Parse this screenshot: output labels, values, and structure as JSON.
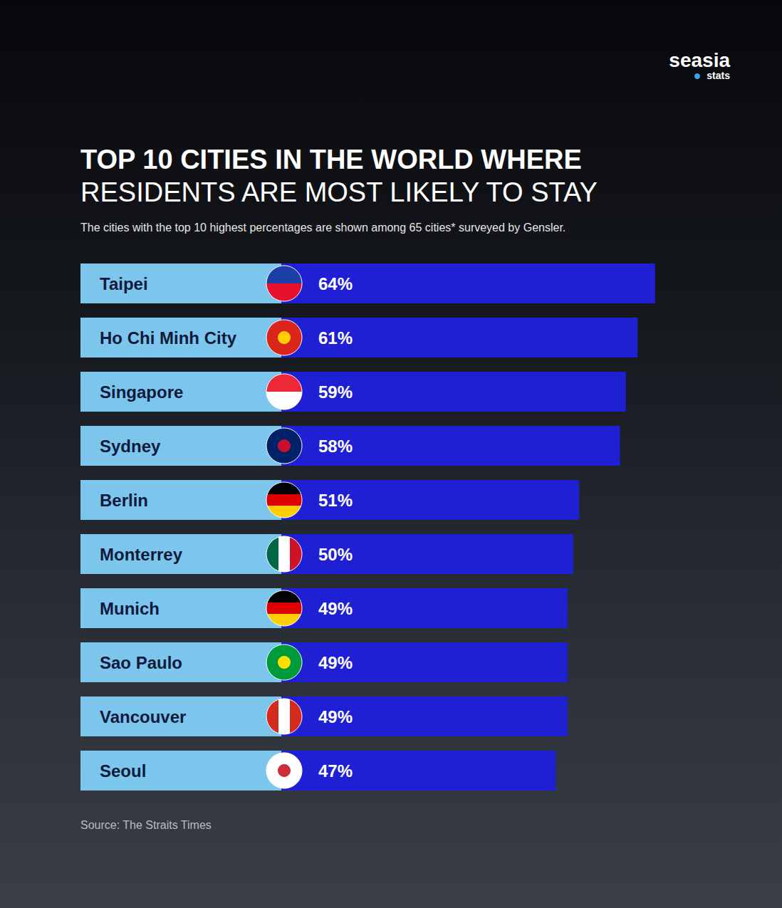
{
  "chart_data": {
    "type": "bar",
    "orientation": "horizontal",
    "title": "TOP 10 CITIES IN THE WORLD WHERE\nRESIDENTS ARE MOST LIKELY TO STAY",
    "subtitle": "The cities with the top 10 highest percentages are shown among 65 cities* surveyed by Gensler.",
    "source": "Source: The Straits Times",
    "brand": "seasia",
    "brand_sub": "stats",
    "categories": [
      "Taipei",
      "Ho Chi Minh City",
      "Singapore",
      "Sydney",
      "Berlin",
      "Monterrey",
      "Munich",
      "Sao Paulo",
      "Vancouver",
      "Seoul"
    ],
    "values": [
      64,
      61,
      59,
      58,
      51,
      50,
      49,
      49,
      49,
      47
    ],
    "value_labels": [
      "64%",
      "61%",
      "59%",
      "58%",
      "51%",
      "50%",
      "49%",
      "49%",
      "49%",
      "47%"
    ],
    "color": "#1f1fd4",
    "xlim": [
      0,
      70
    ],
    "grid": false,
    "data_labels": true,
    "tick_labels": "y"
  }
}
